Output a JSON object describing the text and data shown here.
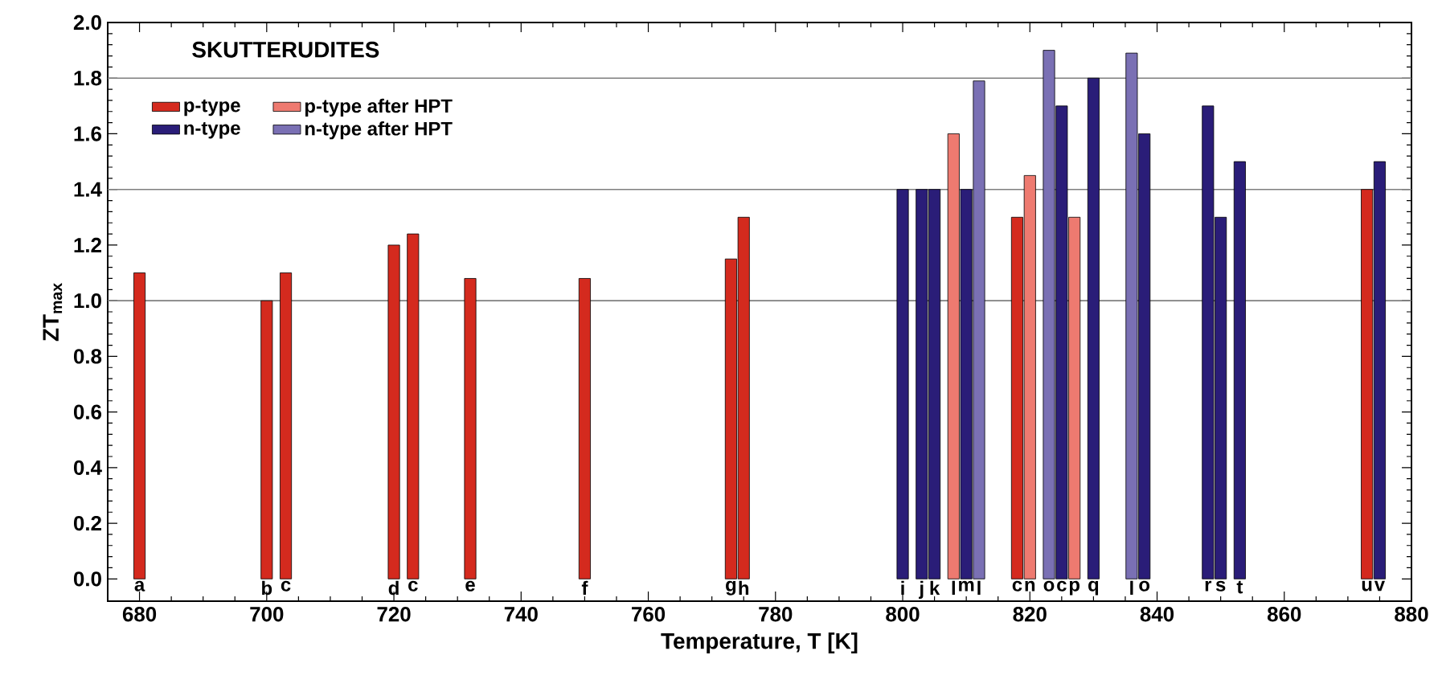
{
  "chart_data": {
    "type": "bar",
    "title": "SKUTTERUDITES",
    "xlabel": "Temperature, T [K]",
    "ylabel": "ZT$_{max}$",
    "xlim": [
      675,
      880
    ],
    "xticks": [
      680,
      700,
      720,
      740,
      760,
      780,
      800,
      820,
      840,
      860,
      880
    ],
    "ylim": [
      -0.08,
      2.0
    ],
    "yticks": [
      {
        "value": 0,
        "label": "0.0"
      },
      {
        "value": 0.2,
        "label": "0.2"
      },
      {
        "value": 0.4,
        "label": "0.4"
      },
      {
        "value": 0.6,
        "label": "0.6"
      },
      {
        "value": 0.8,
        "label": "0.8"
      },
      {
        "value": 1.0,
        "label": "1.0"
      },
      {
        "value": 1.2,
        "label": "1.2"
      },
      {
        "value": 1.4,
        "label": "1.4"
      },
      {
        "value": 1.6,
        "label": "1.6"
      },
      {
        "value": 1.8,
        "label": "1.8"
      },
      {
        "value": 2.0,
        "label": "2.0"
      }
    ],
    "legend": "top left",
    "series": [
      {
        "name": "p-type",
        "color": "#d42a1e",
        "x": [
          680,
          700,
          703,
          720,
          723,
          732,
          750,
          773,
          775,
          818,
          873
        ],
        "values": [
          1.1,
          1.0,
          1.1,
          1.2,
          1.24,
          1.08,
          1.08,
          1.15,
          1.3,
          1.3,
          1.4
        ]
      },
      {
        "name": "p-type after HPT",
        "color": "#ee7a70",
        "x": [
          808,
          820,
          827
        ],
        "values": [
          1.6,
          1.45,
          1.3
        ]
      },
      {
        "name": "n-type",
        "color": "#2a1d78",
        "x": [
          800,
          803,
          805,
          810,
          825,
          830,
          838,
          848,
          850,
          853,
          875
        ],
        "values": [
          1.4,
          1.4,
          1.4,
          1.4,
          1.7,
          1.8,
          1.6,
          1.7,
          1.3,
          1.5,
          1.5
        ]
      },
      {
        "name": "n-type after HPT",
        "color": "#7a70b4",
        "x": [
          812,
          823,
          836
        ],
        "values": [
          1.79,
          1.9,
          1.89
        ]
      }
    ],
    "ref_lines": [
      {
        "axis": "y",
        "value": 1.0,
        "color": "#7f7f7f"
      },
      {
        "axis": "y",
        "value": 1.4,
        "color": "#7f7f7f"
      },
      {
        "axis": "y",
        "value": 1.8,
        "color": "#7f7f7f"
      }
    ],
    "annotations": [
      {
        "text": "a",
        "x": 680,
        "y": 0
      },
      {
        "text": "b",
        "x": 700,
        "y": 0
      },
      {
        "text": "c",
        "x": 703,
        "y": 0
      },
      {
        "text": "d",
        "x": 720,
        "y": 0
      },
      {
        "text": "c",
        "x": 723,
        "y": 0
      },
      {
        "text": "e",
        "x": 732,
        "y": 0
      },
      {
        "text": "f",
        "x": 750,
        "y": 0
      },
      {
        "text": "g",
        "x": 773,
        "y": 0
      },
      {
        "text": "h",
        "x": 775,
        "y": 0
      },
      {
        "text": "i",
        "x": 800,
        "y": 0
      },
      {
        "text": "j",
        "x": 803,
        "y": 0
      },
      {
        "text": "k",
        "x": 805,
        "y": 0
      },
      {
        "text": "l",
        "x": 808,
        "y": 0
      },
      {
        "text": "m",
        "x": 810,
        "y": 0
      },
      {
        "text": "l",
        "x": 812,
        "y": 0
      },
      {
        "text": "c",
        "x": 818,
        "y": 0
      },
      {
        "text": "n",
        "x": 820,
        "y": 0
      },
      {
        "text": "o",
        "x": 823,
        "y": 0
      },
      {
        "text": "c",
        "x": 825,
        "y": 0
      },
      {
        "text": "p",
        "x": 827,
        "y": 0
      },
      {
        "text": "q",
        "x": 830,
        "y": 0
      },
      {
        "text": "l",
        "x": 836,
        "y": 0
      },
      {
        "text": "o",
        "x": 838,
        "y": 0
      },
      {
        "text": "r",
        "x": 848,
        "y": 0
      },
      {
        "text": "s",
        "x": 850,
        "y": 0
      },
      {
        "text": "t",
        "x": 853,
        "y": 0
      },
      {
        "text": "u",
        "x": 873,
        "y": 0
      },
      {
        "text": "v",
        "x": 875,
        "y": 0
      }
    ]
  }
}
